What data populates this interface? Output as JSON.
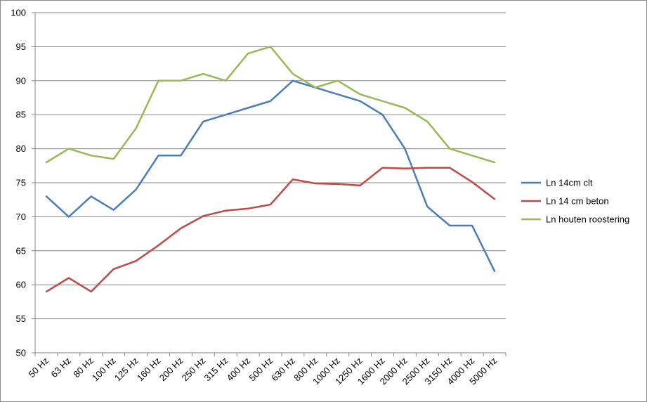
{
  "chart_data": {
    "type": "line",
    "title": "",
    "xlabel": "",
    "ylabel": "",
    "ylim": [
      50,
      100
    ],
    "ytick_step": 5,
    "grid": "horizontal",
    "legend_position": "right",
    "categories": [
      "50 Hz",
      "63 Hz",
      "80 Hz",
      "100 Hz",
      "125 Hz",
      "160 Hz",
      "200 Hz",
      "250 Hz",
      "315 Hz",
      "400 Hz",
      "500 Hz",
      "630 Hz",
      "800 Hz",
      "1000 Hz",
      "1250 Hz",
      "1600 Hz",
      "2000 Hz",
      "2500 Hz",
      "3150 Hz",
      "4000 Hz",
      "5000 Hz"
    ],
    "series": [
      {
        "name": "Ln 14cm clt",
        "color": "#4a7ebb",
        "values": [
          73,
          70,
          73,
          71,
          74,
          79,
          79,
          84,
          85,
          86,
          87,
          90,
          89,
          88,
          87,
          85,
          80,
          71.5,
          68.7,
          68.7,
          62
        ]
      },
      {
        "name": "Ln 14 cm beton",
        "color": "#be4b48",
        "values": [
          59,
          61,
          59,
          62.3,
          63.5,
          65.8,
          68.3,
          70.1,
          70.9,
          71.2,
          71.8,
          75.5,
          74.9,
          74.8,
          74.6,
          77.2,
          77.1,
          77.2,
          77.2,
          75.1,
          72.6
        ]
      },
      {
        "name": "Ln houten roostering",
        "color": "#98b954",
        "values": [
          78,
          80,
          79,
          78.5,
          83,
          90,
          90,
          91,
          90,
          94,
          95,
          91,
          89,
          90,
          88,
          87,
          86,
          84,
          80,
          79,
          78
        ]
      }
    ]
  }
}
